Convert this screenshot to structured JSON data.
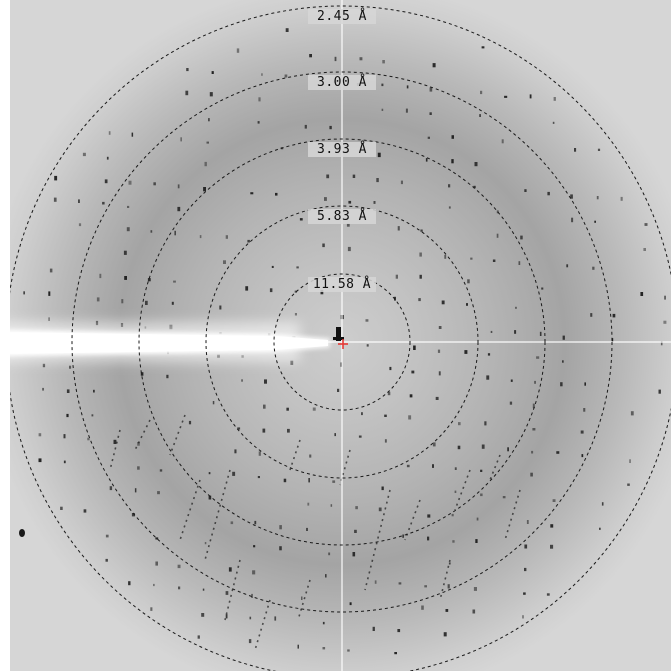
{
  "image": {
    "kind": "x-ray diffraction pattern",
    "background_colors": {
      "frame": "#ffffff",
      "detector_edge": "#d4d4d4",
      "halo": "#a2a2a2",
      "center": "#cfcfcf"
    },
    "spot_color": "#1a1a1a",
    "crosshair_color": "#ffffff",
    "beam_center_marker_color": "#e53935"
  },
  "resolution_rings": [
    {
      "label": "11.58 Å",
      "resolution_angstrom": 11.58
    },
    {
      "label": "5.83 Å",
      "resolution_angstrom": 5.83
    },
    {
      "label": "3.93 Å",
      "resolution_angstrom": 3.93
    },
    {
      "label": "3.00 Å",
      "resolution_angstrom": 3.0
    },
    {
      "label": "2.45 Å",
      "resolution_angstrom": 2.45
    }
  ]
}
